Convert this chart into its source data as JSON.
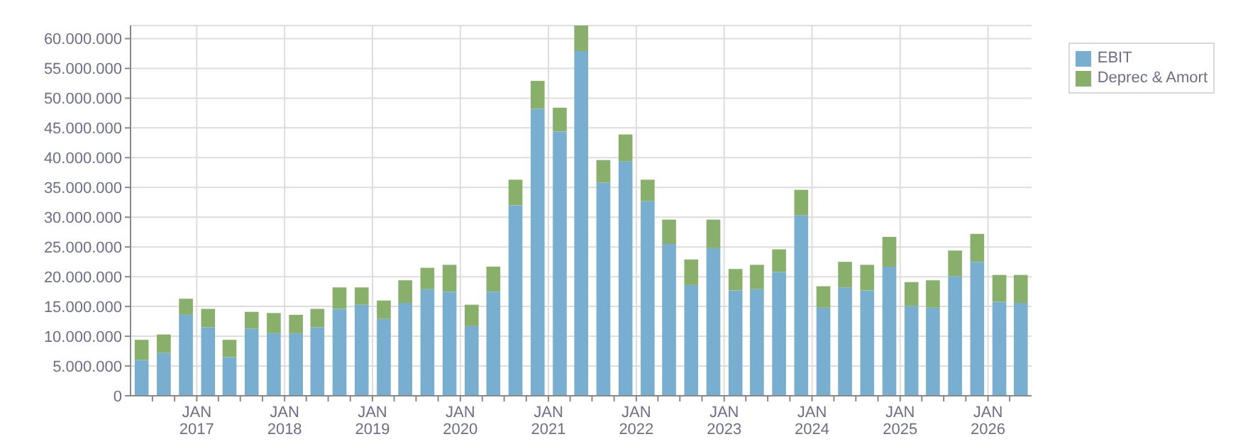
{
  "chart_data": {
    "type": "bar",
    "stacked": true,
    "x": [
      "2016-05-15",
      "2016-08-15",
      "2016-11-15",
      "2017-02-15",
      "2017-05-15",
      "2017-08-15",
      "2017-11-15",
      "2018-02-15",
      "2018-05-15",
      "2018-08-15",
      "2018-11-15",
      "2019-02-15",
      "2019-05-15",
      "2019-08-15",
      "2019-11-15",
      "2020-02-15",
      "2020-05-15",
      "2020-08-15",
      "2020-11-15",
      "2021-02-15",
      "2021-05-15",
      "2021-08-15",
      "2021-11-15",
      "2022-02-15",
      "2022-05-15",
      "2022-08-15",
      "2022-11-15",
      "2023-02-15",
      "2023-05-15",
      "2023-08-15",
      "2023-11-15",
      "2024-02-15",
      "2024-05-15",
      "2024-08-15",
      "2024-11-15",
      "2025-02-15",
      "2025-05-15",
      "2025-08-15",
      "2025-11-15",
      "2026-02-15",
      "2026-05-15"
    ],
    "series": [
      {
        "name": "EBIT",
        "color": "#78afd0",
        "values": [
          6000000,
          7200000,
          13600000,
          11500000,
          6500000,
          11300000,
          10500000,
          10500000,
          11500000,
          14600000,
          15300000,
          12900000,
          15600000,
          17900000,
          17500000,
          11700000,
          17500000,
          32000000,
          48200000,
          44400000,
          57900000,
          35800000,
          39400000,
          32700000,
          25500000,
          18600000,
          24800000,
          17700000,
          17900000,
          20800000,
          30300000,
          14800000,
          18200000,
          17700000,
          21700000,
          15100000,
          14800000,
          20100000,
          22500000,
          15800000,
          15600000
        ]
      },
      {
        "name": "Deprec & Amort",
        "color": "#88b06a",
        "values": [
          3400000,
          3100000,
          2700000,
          3100000,
          2900000,
          2800000,
          3400000,
          3100000,
          3100000,
          3600000,
          2900000,
          3100000,
          3800000,
          3600000,
          4500000,
          3600000,
          4200000,
          4300000,
          4700000,
          4000000,
          4300000,
          3800000,
          4500000,
          3600000,
          4100000,
          4300000,
          4800000,
          3600000,
          4100000,
          3800000,
          4300000,
          3600000,
          4300000,
          4300000,
          5000000,
          4000000,
          4600000,
          4300000,
          4700000,
          4500000,
          4700000
        ]
      }
    ],
    "xlim": [
      "2016-04-01",
      "2026-07-01"
    ],
    "xticks": [
      {
        "value": "2016-07-01",
        "label": null
      },
      {
        "value": "2016-10-01",
        "label": null
      },
      {
        "value": "2017-01-01",
        "label": "JAN 2017"
      },
      {
        "value": "2017-04-01",
        "label": null
      },
      {
        "value": "2017-07-01",
        "label": null
      },
      {
        "value": "2017-10-01",
        "label": null
      },
      {
        "value": "2018-01-01",
        "label": "JAN 2018"
      },
      {
        "value": "2018-04-01",
        "label": null
      },
      {
        "value": "2018-07-01",
        "label": null
      },
      {
        "value": "2018-10-01",
        "label": null
      },
      {
        "value": "2019-01-01",
        "label": "JAN 2019"
      },
      {
        "value": "2019-04-01",
        "label": null
      },
      {
        "value": "2019-07-01",
        "label": null
      },
      {
        "value": "2019-10-01",
        "label": null
      },
      {
        "value": "2020-01-01",
        "label": "JAN 2020"
      },
      {
        "value": "2020-04-01",
        "label": null
      },
      {
        "value": "2020-07-01",
        "label": null
      },
      {
        "value": "2020-10-01",
        "label": null
      },
      {
        "value": "2021-01-01",
        "label": "JAN 2021"
      },
      {
        "value": "2021-04-01",
        "label": null
      },
      {
        "value": "2021-07-01",
        "label": null
      },
      {
        "value": "2021-10-01",
        "label": null
      },
      {
        "value": "2022-01-01",
        "label": "JAN 2022"
      },
      {
        "value": "2022-04-01",
        "label": null
      },
      {
        "value": "2022-07-01",
        "label": null
      },
      {
        "value": "2022-10-01",
        "label": null
      },
      {
        "value": "2023-01-01",
        "label": "JAN 2023"
      },
      {
        "value": "2023-04-01",
        "label": null
      },
      {
        "value": "2023-07-01",
        "label": null
      },
      {
        "value": "2023-10-01",
        "label": null
      },
      {
        "value": "2024-01-01",
        "label": "JAN 2024"
      },
      {
        "value": "2024-04-01",
        "label": null
      },
      {
        "value": "2024-07-01",
        "label": null
      },
      {
        "value": "2024-10-01",
        "label": null
      },
      {
        "value": "2025-01-01",
        "label": "JAN 2025"
      },
      {
        "value": "2025-04-01",
        "label": null
      },
      {
        "value": "2025-07-01",
        "label": null
      },
      {
        "value": "2025-10-01",
        "label": null
      },
      {
        "value": "2026-01-01",
        "label": "JAN 2026"
      },
      {
        "value": "2026-04-01",
        "label": null
      }
    ],
    "ylim": [
      0,
      62200000
    ],
    "yticks": [
      0,
      {
        "value": 5000000,
        "label": "5.000.000"
      },
      {
        "value": 10000000,
        "label": "10.000.000"
      },
      {
        "value": 15000000,
        "label": "15.000.000"
      },
      {
        "value": 20000000,
        "label": "20.000.000"
      },
      {
        "value": 25000000,
        "label": "25.000.000"
      },
      {
        "value": 30000000,
        "label": "30.000.000"
      },
      {
        "value": 35000000,
        "label": "35.000.000"
      },
      {
        "value": 40000000,
        "label": "40.000.000"
      },
      {
        "value": 45000000,
        "label": "45.000.000"
      },
      {
        "value": 50000000,
        "label": "50.000.000"
      },
      {
        "value": 55000000,
        "label": "55.000.000"
      },
      {
        "value": 60000000,
        "label": "60.000.000"
      }
    ],
    "grid": true,
    "legend": "top right"
  }
}
